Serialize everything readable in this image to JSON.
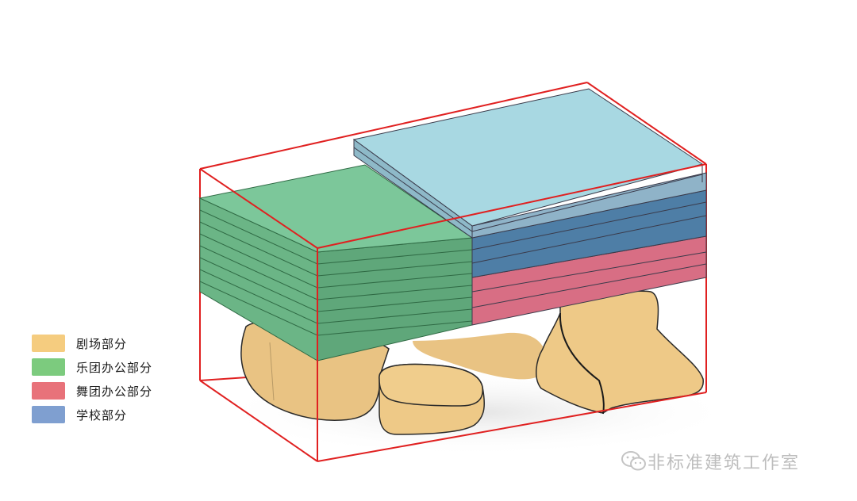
{
  "legend": {
    "items": [
      {
        "label": "剧场部分",
        "color": "#F5CC7F"
      },
      {
        "label": "乐团办公部分",
        "color": "#7CCB7E"
      },
      {
        "label": "舞团办公部分",
        "color": "#E8727A"
      },
      {
        "label": "学校部分",
        "color": "#7F9FD0"
      }
    ]
  },
  "watermark": {
    "text": "非标准建筑工作室",
    "icon": "wechat-icon"
  },
  "colors": {
    "boundary": "#E02020",
    "theater_base": "#E9C383",
    "music_office": "#69B88B",
    "dance_office": "#D87F8F",
    "school": "#5B87AE",
    "school_roof": "#A8D8E2"
  }
}
